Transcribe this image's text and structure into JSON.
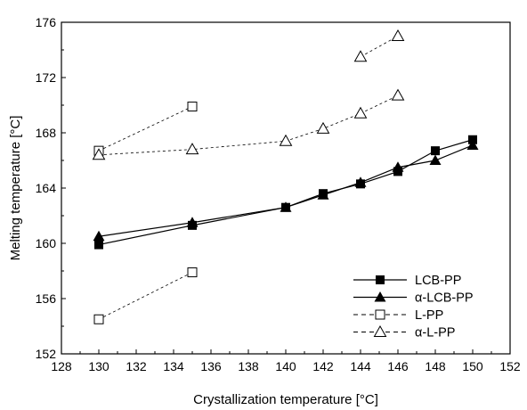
{
  "chart_data": {
    "type": "line",
    "xlabel": "Crystallization temperature [°C]",
    "ylabel": "Melting temperature [°C]",
    "xlim": [
      128,
      152
    ],
    "ylim": [
      152,
      176
    ],
    "xticks": [
      "128",
      "130",
      "132",
      "134",
      "136",
      "138",
      "140",
      "142",
      "144",
      "146",
      "148",
      "150",
      "152"
    ],
    "yticks": [
      "152",
      "156",
      "160",
      "164",
      "168",
      "172",
      "176"
    ],
    "grid": false,
    "legend_position": "bottom-right",
    "series": [
      {
        "name": "LCB-PP",
        "marker": "square-filled",
        "line": "solid",
        "points": [
          [
            130,
            159.9
          ],
          [
            135,
            161.3
          ],
          [
            140,
            162.6
          ],
          [
            142,
            163.6
          ],
          [
            144,
            164.3
          ],
          [
            146,
            165.2
          ],
          [
            148,
            166.7
          ],
          [
            150,
            167.5
          ]
        ]
      },
      {
        "name": "α-LCB-PP",
        "marker": "triangle-filled",
        "line": "solid",
        "points": [
          [
            130,
            160.5
          ],
          [
            135,
            161.5
          ],
          [
            140,
            162.6
          ],
          [
            142,
            163.5
          ],
          [
            144,
            164.4
          ],
          [
            146,
            165.5
          ],
          [
            148,
            166.0
          ],
          [
            150,
            167.1
          ]
        ]
      },
      {
        "name": "L-PP",
        "marker": "square-open",
        "line": "dashed",
        "segments": [
          [
            [
              130,
              166.7
            ],
            [
              135,
              169.9
            ]
          ],
          [
            [
              130,
              154.5
            ],
            [
              135,
              157.9
            ]
          ]
        ]
      },
      {
        "name": "α-L-PP",
        "marker": "triangle-open",
        "line": "dashed",
        "segments": [
          [
            [
              130,
              166.4
            ],
            [
              135,
              166.8
            ],
            [
              140,
              167.4
            ],
            [
              142,
              168.3
            ],
            [
              144,
              169.4
            ],
            [
              146,
              170.7
            ]
          ],
          [
            [
              144,
              173.5
            ],
            [
              146,
              175.0
            ]
          ]
        ]
      }
    ]
  }
}
